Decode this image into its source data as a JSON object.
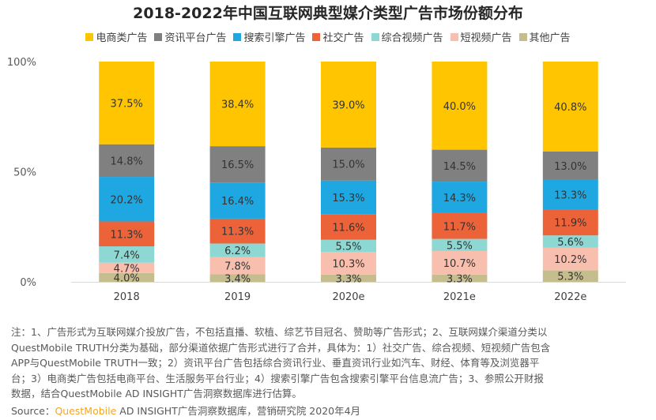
{
  "chart_data": {
    "type": "bar",
    "stacked": true,
    "title": "2018-2022年中国互联网典型媒介类型广告市场份额分布",
    "categories": [
      "2018",
      "2019",
      "2020e",
      "2021e",
      "2022e"
    ],
    "ylim": [
      0,
      100
    ],
    "yticks": [
      "0%",
      "50%",
      "100%"
    ],
    "legend_position": "top",
    "grid": false,
    "series": [
      {
        "name": "其他广告",
        "color": "#C6BD8F",
        "values": [
          4.0,
          3.4,
          3.3,
          3.3,
          5.3
        ]
      },
      {
        "name": "短视频广告",
        "color": "#F8BEAE",
        "values": [
          4.7,
          7.8,
          10.3,
          10.7,
          10.2
        ]
      },
      {
        "name": "综合视频广告",
        "color": "#8DD8D3",
        "values": [
          7.4,
          6.2,
          5.5,
          5.5,
          5.6
        ]
      },
      {
        "name": "社交广告",
        "color": "#EC633A",
        "values": [
          11.3,
          11.3,
          11.6,
          11.7,
          11.9
        ]
      },
      {
        "name": "搜索引擎广告",
        "color": "#1EA7E1",
        "values": [
          20.2,
          16.4,
          15.3,
          14.3,
          13.3
        ]
      },
      {
        "name": "资讯平台广告",
        "color": "#808080",
        "values": [
          14.8,
          16.5,
          15.0,
          14.5,
          13.0
        ]
      },
      {
        "name": "电商类广告",
        "color": "#FFC600",
        "values": [
          37.5,
          38.4,
          39.0,
          40.0,
          40.8
        ]
      }
    ],
    "legend_order": [
      "电商类广告",
      "资讯平台广告",
      "搜索引擎广告",
      "社交广告",
      "综合视频广告",
      "短视频广告",
      "其他广告"
    ]
  },
  "notes": [
    "注：1、广告形式为互联网媒介投放广告，不包括直播、软植、综艺节目冠名、赞助等广告形式；2、互联网媒介渠道分类以",
    "QuestMobile TRUTH分类为基础，部分渠道依据广告形式进行了合并，具体为：1）社交广告、综合视频、短视频广告包含",
    "APP与QuestMobile TRUTH一致；2）资讯平台广告包括综合资讯行业、垂直资讯行业如汽车、财经、体育等及浏览器平",
    "台；3）电商类广告包括电商平台、生活服务平台行业；4）搜索引擎广告包含搜索引擎平台信息流广告；3、参照公开财报",
    "数据，结合QuestMobile AD INSIGHT广告洞察数据库进行估算。"
  ],
  "source": {
    "label": "Source：",
    "brand": "QuestMobile",
    "rest": " AD INSIGHT广告洞察数据库，营销研究院 2020年4月"
  }
}
